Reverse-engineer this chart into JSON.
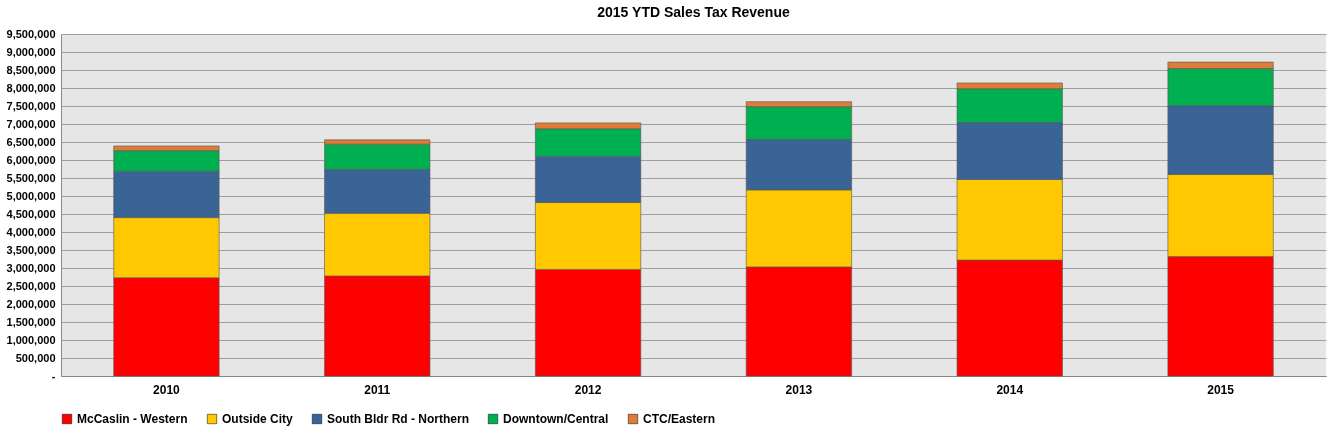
{
  "chart_data": {
    "type": "bar",
    "title": "2015 YTD Sales Tax Revenue",
    "stacked": true,
    "categories": [
      "2010",
      "2011",
      "2012",
      "2013",
      "2014",
      "2015"
    ],
    "series": [
      {
        "name": "McCaslin - Western",
        "color": "#ff0000",
        "values": [
          2730000,
          2780000,
          2960000,
          3030000,
          3220000,
          3320000
        ]
      },
      {
        "name": "Outside City",
        "color": "#ffc800",
        "values": [
          1670000,
          1740000,
          1860000,
          2140000,
          2240000,
          2280000
        ]
      },
      {
        "name": "South Bldr Rd - Northern",
        "color": "#3a6496",
        "values": [
          1290000,
          1220000,
          1280000,
          1400000,
          1580000,
          1910000
        ]
      },
      {
        "name": "Downtown/Central",
        "color": "#00b050",
        "values": [
          570000,
          700000,
          770000,
          910000,
          940000,
          1030000
        ]
      },
      {
        "name": "CTC/Eastern",
        "color": "#e07b39",
        "values": [
          130000,
          120000,
          160000,
          140000,
          160000,
          180000
        ]
      }
    ],
    "ylim": [
      0,
      9500000
    ],
    "yticks": [
      {
        "value": 0,
        "label": "-"
      },
      {
        "value": 500000,
        "label": "500,000"
      },
      {
        "value": 1000000,
        "label": "1,000,000"
      },
      {
        "value": 1500000,
        "label": "1,500,000"
      },
      {
        "value": 2000000,
        "label": "2,000,000"
      },
      {
        "value": 2500000,
        "label": "2,500,000"
      },
      {
        "value": 3000000,
        "label": "3,000,000"
      },
      {
        "value": 3500000,
        "label": "3,500,000"
      },
      {
        "value": 4000000,
        "label": "4,000,000"
      },
      {
        "value": 4500000,
        "label": "4,500,000"
      },
      {
        "value": 5000000,
        "label": "5,000,000"
      },
      {
        "value": 5500000,
        "label": "5,500,000"
      },
      {
        "value": 6000000,
        "label": "6,000,000"
      },
      {
        "value": 6500000,
        "label": "6,500,000"
      },
      {
        "value": 7000000,
        "label": "7,000,000"
      },
      {
        "value": 7500000,
        "label": "7,500,000"
      },
      {
        "value": 8000000,
        "label": "8,000,000"
      },
      {
        "value": 8500000,
        "label": "8,500,000"
      },
      {
        "value": 9000000,
        "label": "9,000,000"
      },
      {
        "value": 9500000,
        "label": "9,500,000"
      }
    ],
    "grid": "y",
    "legend": "bottom"
  }
}
